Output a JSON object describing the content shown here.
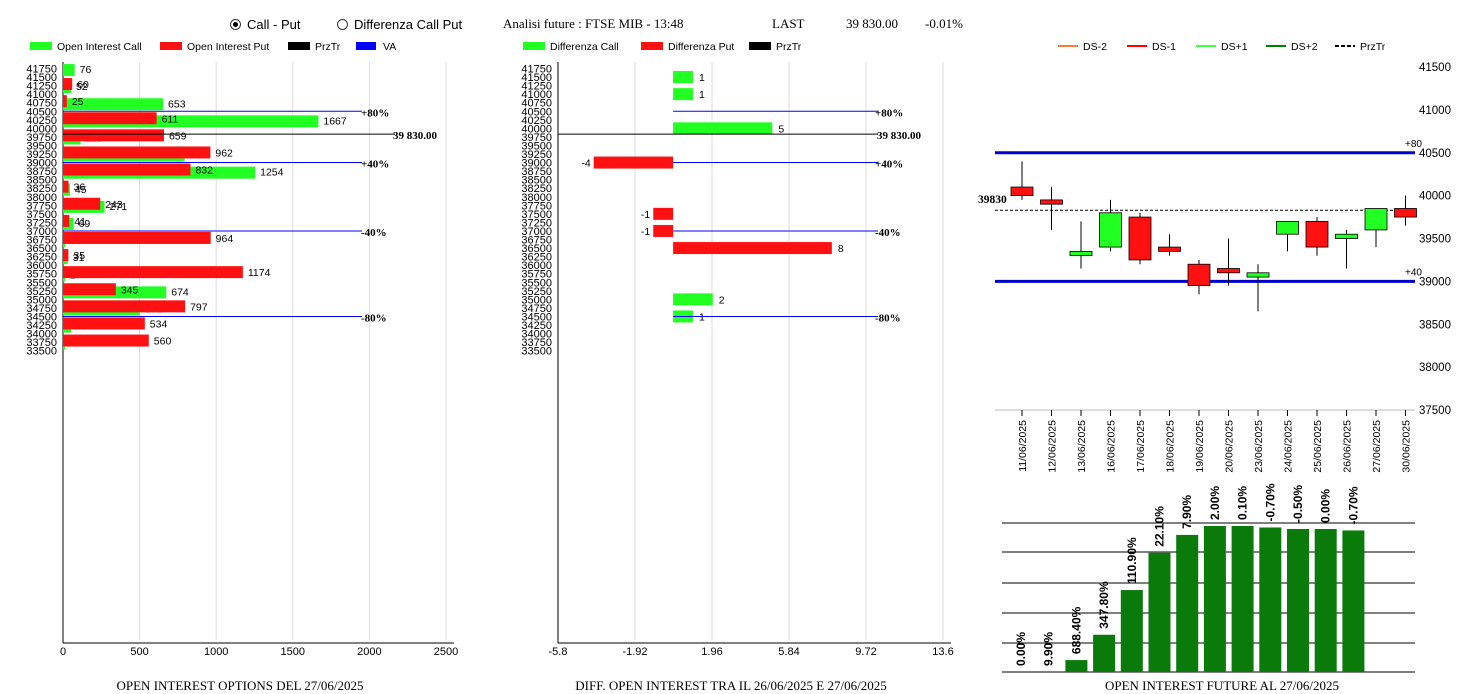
{
  "header": {
    "radio_call_put": "Call - Put",
    "radio_diff": "Differenza Call Put",
    "title": "Analisi future : FTSE MIB - 13:48",
    "last_label": "LAST",
    "last_value": "39 830.00",
    "change": "-0.01%"
  },
  "colors": {
    "call": "#22ff22",
    "put": "#ff1111",
    "va": "#0000ff",
    "przTr": "#000000",
    "future_bar": "#0a7a0a"
  },
  "chart_data": [
    {
      "id": "oi-options",
      "type": "bar",
      "title": "OPEN INTEREST OPTIONS DEL 27/06/2025",
      "legend": [
        "Open Interest Call",
        "Open Interest Put",
        "PrzTr",
        "VA"
      ],
      "y_ticks": [
        "41750",
        "41500",
        "41250",
        "41000",
        "40750",
        "40500",
        "40250",
        "40000",
        "39750",
        "39500",
        "39250",
        "39000",
        "38750",
        "38500",
        "38250",
        "38000",
        "37750",
        "37500",
        "37250",
        "37000",
        "36750",
        "36500",
        "36250",
        "36000",
        "35750",
        "35500",
        "35250",
        "35000",
        "34750",
        "34500",
        "34250",
        "34000",
        "33750",
        "33500"
      ],
      "x_ticks": [
        "0",
        "500",
        "1000",
        "1500",
        "2000",
        "2500"
      ],
      "xlim": [
        0,
        2500
      ],
      "series": [
        {
          "name": "Open Interest Call",
          "strikes": [
            41500,
            41000,
            40500,
            40000,
            39500,
            39000,
            38500,
            38000,
            37500,
            37000,
            36500,
            36000,
            35500,
            35000,
            34500,
            34000,
            33500
          ],
          "values": [
            76,
            52,
            653,
            1667,
            115,
            794,
            1254,
            45,
            271,
            69,
            9,
            31,
            2,
            674,
            501,
            53,
            1
          ]
        },
        {
          "name": "Open Interest Put",
          "strikes": [
            41500,
            41000,
            40500,
            40000,
            39500,
            39000,
            38500,
            38000,
            37500,
            37000,
            36500,
            36000,
            35500,
            35000,
            34500,
            34000
          ],
          "values": [
            60,
            25,
            611,
            659,
            962,
            832,
            36,
            243,
            41,
            964,
            35,
            1174,
            345,
            797,
            534,
            560
          ]
        }
      ],
      "lines": [
        {
          "level": 40500,
          "label": "+80%",
          "kind": "VA"
        },
        {
          "level": 39000,
          "label": "+40%",
          "kind": "VA"
        },
        {
          "level": 37000,
          "label": "-40%",
          "kind": "VA"
        },
        {
          "level": 34500,
          "label": "-80%",
          "kind": "VA"
        },
        {
          "level": 39830,
          "label": "39 830.00",
          "kind": "PrzTr"
        }
      ]
    },
    {
      "id": "diff-oi",
      "type": "bar",
      "title": "DIFF. OPEN INTEREST TRA IL 26/06/2025 E 27/06/2025",
      "legend": [
        "Differenza Call",
        "Differenza Put",
        "PrzTr"
      ],
      "y_ticks": [
        "41750",
        "41500",
        "41250",
        "41000",
        "40750",
        "40500",
        "40250",
        "40000",
        "39750",
        "39500",
        "39250",
        "39000",
        "38750",
        "38500",
        "38250",
        "38000",
        "37750",
        "37500",
        "37250",
        "37000",
        "36750",
        "36500",
        "36250",
        "36000",
        "35750",
        "35500",
        "35250",
        "35000",
        "34750",
        "34500",
        "34250",
        "34000",
        "33750",
        "33500"
      ],
      "x_ticks": [
        "-5.8",
        "-1.92",
        "1.96",
        "5.84",
        "9.72",
        "13.6"
      ],
      "xlim": [
        -5.8,
        13.6
      ],
      "series": [
        {
          "name": "Differenza Call",
          "strikes": [
            41500,
            41000,
            40000,
            35000,
            34500
          ],
          "values": [
            1,
            1,
            5,
            2,
            1
          ]
        },
        {
          "name": "Differenza Put",
          "strikes": [
            39000,
            37500,
            37000,
            36500
          ],
          "values": [
            -4,
            -1,
            -1,
            8
          ]
        }
      ],
      "lines": [
        {
          "level": 40500,
          "label": "+80%",
          "kind": "VA"
        },
        {
          "level": 39000,
          "label": "+40%",
          "kind": "VA"
        },
        {
          "level": 37000,
          "label": "-40%",
          "kind": "VA"
        },
        {
          "level": 34500,
          "label": "-80%",
          "kind": "VA"
        },
        {
          "level": 39830,
          "label": "39 830.00",
          "kind": "PrzTr"
        }
      ]
    },
    {
      "id": "candles",
      "type": "candlestick",
      "legend": [
        "DS-2",
        "DS-1",
        "DS+1",
        "DS+2",
        "PrzTr"
      ],
      "legend_colors": [
        "#f08040",
        "#ff0000",
        "#40ff40",
        "#008000",
        "#000000"
      ],
      "y_ticks": [
        "41500",
        "41000",
        "40500",
        "40000",
        "39500",
        "39000",
        "38500",
        "38000",
        "37500"
      ],
      "ylim": [
        37500,
        41500
      ],
      "dates": [
        "11/06/2025",
        "12/06/2025",
        "13/06/2025",
        "16/06/2025",
        "17/06/2025",
        "18/06/2025",
        "19/06/2025",
        "20/06/2025",
        "23/06/2025",
        "24/06/2025",
        "25/06/2025",
        "26/06/2025",
        "27/06/2025",
        "30/06/2025"
      ],
      "open": [
        40100,
        39950,
        39300,
        39400,
        39750,
        39400,
        39200,
        39150,
        39050,
        39550,
        39700,
        39500,
        39600,
        39850
      ],
      "high": [
        40400,
        40100,
        39700,
        39950,
        39800,
        39550,
        39250,
        39500,
        39200,
        39700,
        39750,
        39600,
        39850,
        40000
      ],
      "low": [
        39950,
        39600,
        39150,
        39350,
        39200,
        39300,
        38850,
        38950,
        38650,
        39350,
        39300,
        39150,
        39400,
        39650
      ],
      "close": [
        40000,
        39900,
        39350,
        39800,
        39250,
        39350,
        38950,
        39100,
        39100,
        39700,
        39400,
        39550,
        39850,
        39750
      ],
      "przTr": 39830,
      "przTr_label": "39830",
      "levels": [
        {
          "value": 40500,
          "label": "+80"
        },
        {
          "value": 39000,
          "label": "+40"
        }
      ]
    },
    {
      "id": "oi-future",
      "type": "bar",
      "title": "OPEN INTEREST FUTURE AL 27/06/2025",
      "labels": [
        "0.00%",
        "9.90%",
        "688.40%",
        "347.80%",
        "110.90%",
        "22.10%",
        "7.90%",
        "2.00%",
        "0.10%",
        "-0.70%",
        "-0.50%",
        "0.00%",
        "-0.70%"
      ],
      "values": [
        0,
        0,
        0.08,
        0.25,
        0.55,
        0.8,
        0.92,
        0.98,
        0.98,
        0.97,
        0.96,
        0.96,
        0.95
      ]
    }
  ]
}
